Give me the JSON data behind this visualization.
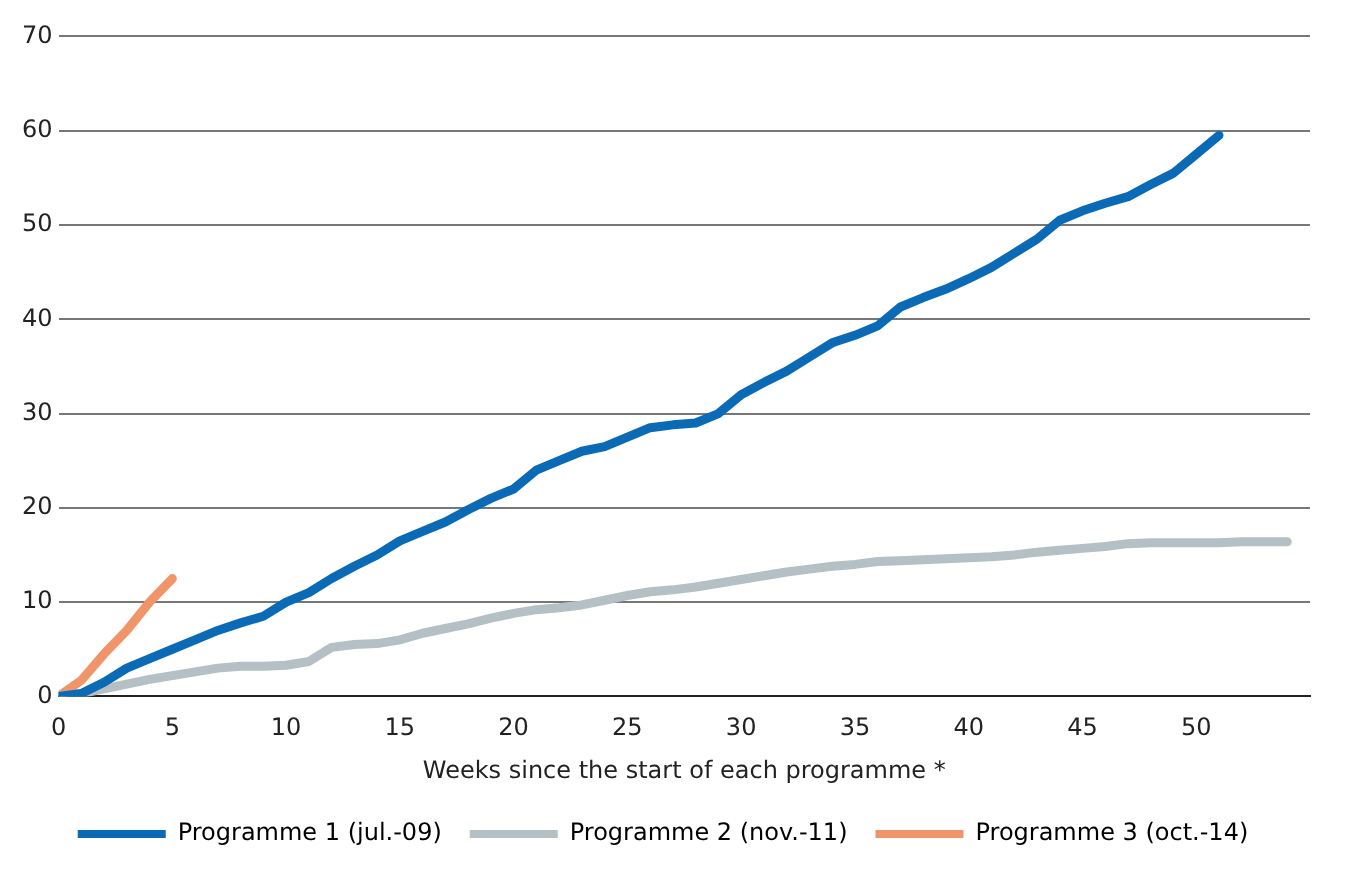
{
  "chart_data": {
    "type": "line",
    "xlabel": "Weeks since the start of each programme *",
    "xlim": [
      0,
      55
    ],
    "xticks": [
      0,
      5,
      10,
      15,
      20,
      25,
      30,
      35,
      40,
      45,
      50
    ],
    "ylim": [
      0,
      70
    ],
    "yticks": [
      0,
      10,
      20,
      30,
      40,
      50,
      60,
      70
    ],
    "grid": "y",
    "legend": "bottom",
    "marker": "none",
    "line_style": "solid",
    "series": [
      {
        "name": "Programme 1 (jul.-09)",
        "color": "#0a6ab5",
        "x": [
          0,
          1,
          2,
          3,
          4,
          5,
          6,
          7,
          8,
          9,
          10,
          11,
          12,
          13,
          14,
          15,
          16,
          17,
          18,
          19,
          20,
          21,
          22,
          23,
          24,
          25,
          26,
          27,
          28,
          29,
          30,
          31,
          32,
          33,
          34,
          35,
          36,
          37,
          38,
          39,
          40,
          41,
          42,
          43,
          44,
          45,
          46,
          47,
          48,
          49,
          50,
          51
        ],
        "values": [
          0,
          0.3,
          1.5,
          3,
          4,
          5,
          6,
          7,
          7.8,
          8.5,
          10,
          11,
          12.5,
          13.8,
          15,
          16.5,
          17.5,
          18.5,
          19.8,
          21,
          22,
          24,
          25,
          26,
          26.5,
          27.5,
          28.5,
          28.8,
          29,
          30,
          32,
          33.3,
          34.5,
          36,
          37.5,
          38.3,
          39.3,
          41.3,
          42.3,
          43.2,
          44.3,
          45.5,
          47,
          48.5,
          50.5,
          51.5,
          52.3,
          53,
          54.3,
          55.5,
          57.5,
          59.5
        ]
      },
      {
        "name": "Programme 2 (nov.-11)",
        "color": "#b4c0c4",
        "x": [
          0,
          1,
          2,
          3,
          4,
          5,
          6,
          7,
          8,
          9,
          10,
          11,
          12,
          13,
          14,
          15,
          16,
          17,
          18,
          19,
          20,
          21,
          22,
          23,
          24,
          25,
          26,
          27,
          28,
          29,
          30,
          31,
          32,
          33,
          34,
          35,
          36,
          37,
          38,
          39,
          40,
          41,
          42,
          43,
          44,
          45,
          46,
          47,
          48,
          49,
          50,
          51,
          52,
          53,
          54
        ],
        "values": [
          0,
          0.3,
          0.8,
          1.3,
          1.8,
          2.2,
          2.6,
          3,
          3.2,
          3.2,
          3.3,
          3.7,
          5.2,
          5.5,
          5.6,
          6,
          6.7,
          7.2,
          7.7,
          8.3,
          8.8,
          9.2,
          9.4,
          9.7,
          10.2,
          10.7,
          11.1,
          11.3,
          11.6,
          12,
          12.4,
          12.8,
          13.2,
          13.5,
          13.8,
          14,
          14.3,
          14.4,
          14.5,
          14.6,
          14.7,
          14.8,
          15,
          15.3,
          15.5,
          15.7,
          15.9,
          16.2,
          16.3,
          16.3,
          16.3,
          16.3,
          16.4,
          16.4,
          16.4
        ]
      },
      {
        "name": "Programme 3 (oct.-14)",
        "color": "#f0956a",
        "x": [
          0,
          1,
          2,
          3,
          4,
          5
        ],
        "values": [
          0,
          1.7,
          4.5,
          7,
          10,
          12.5
        ]
      }
    ]
  }
}
